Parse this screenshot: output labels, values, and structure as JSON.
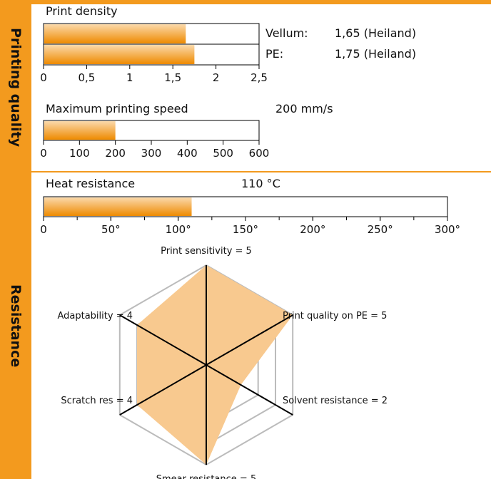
{
  "sections": {
    "printing_quality": "Printing quality",
    "resistance": "Resistance"
  },
  "colors": {
    "accent": "#f39a1e",
    "bar_dark": "#ee8a00",
    "bar_light": "#fbd9ab",
    "radar_fill": "#f8c98f",
    "grid": "#bbbbbb"
  },
  "print_density": {
    "title": "Print density",
    "labels": {
      "vellum": "Vellum:",
      "vellum_value": "1,65 (Heiland)",
      "pe": "PE:",
      "pe_value": "1,75 (Heiland)"
    }
  },
  "max_speed": {
    "title": "Maximum printing speed",
    "value_text": "200 mm/s"
  },
  "heat": {
    "title": "Heat resistance",
    "value_text": "110 °C"
  },
  "chart_data": [
    {
      "type": "bar",
      "orientation": "horizontal",
      "title": "Print density",
      "categories": [
        "Vellum",
        "PE"
      ],
      "values": [
        1.65,
        1.75
      ],
      "xlim": [
        0,
        2.5
      ],
      "ticks": [
        "0",
        "0,5",
        "1",
        "1,5",
        "2",
        "2,5"
      ],
      "tick_values": [
        0,
        0.5,
        1,
        1.5,
        2,
        2.5
      ]
    },
    {
      "type": "bar",
      "orientation": "horizontal",
      "title": "Maximum printing speed",
      "values": [
        200
      ],
      "xlim": [
        0,
        600
      ],
      "ticks": [
        "0",
        "100",
        "200",
        "300",
        "400",
        "500",
        "600"
      ],
      "tick_values": [
        0,
        100,
        200,
        300,
        400,
        500,
        600
      ]
    },
    {
      "type": "bar",
      "orientation": "horizontal",
      "title": "Heat resistance",
      "values": [
        110
      ],
      "xlim": [
        0,
        300
      ],
      "ticks": [
        "0",
        "50°",
        "100°",
        "150°",
        "200°",
        "250°",
        "300°"
      ],
      "tick_values": [
        0,
        50,
        100,
        150,
        200,
        250,
        300
      ],
      "minor_tick_step": 25
    },
    {
      "type": "radar",
      "max": 5,
      "grid_levels": [
        3,
        4,
        5
      ],
      "axes": [
        "Print sensitivity",
        "Print quality on PE",
        "Solvent resistance",
        "Smear resistance",
        "Scratch res",
        "Adaptability"
      ],
      "values": [
        5,
        5,
        2,
        5,
        4,
        4
      ],
      "labels": [
        "Print sensitivity = 5",
        "Print quality on PE = 5",
        "Solvent resistance = 2",
        "Smear resistance = 5",
        "Scratch res = 4",
        "Adaptability = 4"
      ]
    }
  ]
}
